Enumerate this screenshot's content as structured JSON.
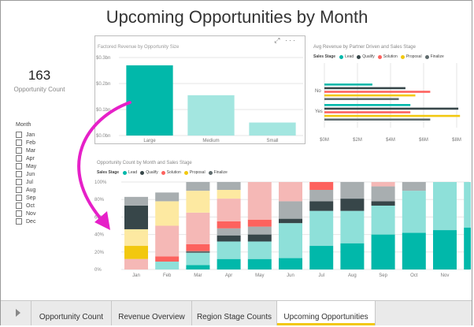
{
  "page": {
    "title": "Upcoming Opportunities by Month"
  },
  "kpi": {
    "value": "163",
    "label": "Opportunity Count"
  },
  "slicer": {
    "title": "Month",
    "items": [
      "Jan",
      "Feb",
      "Mar",
      "Apr",
      "May",
      "Jun",
      "Jul",
      "Aug",
      "Sep",
      "Oct",
      "Nov",
      "Dec"
    ]
  },
  "colors": {
    "Lead": "#01b8aa",
    "Qualify": "#374649",
    "Solution": "#fd625e",
    "Proposal": "#f2c80f",
    "Finalize": "#5f6b6d",
    "highlight_arrow": "#e620c8"
  },
  "legend": {
    "title": "Sales Stage",
    "items": [
      "Lead",
      "Qualify",
      "Solution",
      "Proposal",
      "Finalize"
    ]
  },
  "card": {
    "icons": "⤢ ···"
  },
  "chart_data": [
    {
      "type": "bar",
      "title": "Factored Revenue by Opportunity Size",
      "categories": [
        "Large",
        "Medium",
        "Small"
      ],
      "values": [
        0.27,
        0.155,
        0.05
      ],
      "yticks": [
        "$0.0bn",
        "$0.1bn",
        "$0.2bn",
        "$0.3bn"
      ],
      "ylim": [
        0,
        0.3
      ],
      "color": "#01b8aa"
    },
    {
      "type": "bar",
      "orientation": "horizontal",
      "title": "Avg Revenue by Partner Driven and Sales Stage",
      "categories": [
        "No",
        "Yes"
      ],
      "xticks": [
        "$0M",
        "$2M",
        "$4M",
        "$6M",
        "$8M"
      ],
      "xlim": [
        0,
        8
      ],
      "series": [
        {
          "name": "Lead",
          "values": [
            2.9,
            5.2
          ]
        },
        {
          "name": "Qualify",
          "values": [
            4.9,
            8.1
          ]
        },
        {
          "name": "Solution",
          "values": [
            6.4,
            5.2
          ]
        },
        {
          "name": "Proposal",
          "values": [
            5.5,
            8.2
          ]
        },
        {
          "name": "Finalize",
          "values": [
            4.5,
            6.4
          ]
        }
      ],
      "legend": "top-left"
    },
    {
      "type": "bar",
      "stacked": "100%",
      "title": "Opportunity Count by Month and Sales Stage",
      "categories": [
        "Jan",
        "Feb",
        "Mar",
        "Apr",
        "May",
        "Jun",
        "Jul",
        "Aug",
        "Sep",
        "Oct",
        "Nov",
        "Dec"
      ],
      "yticks": [
        "0%",
        "20%",
        "40%",
        "60%",
        "80%",
        "100%"
      ],
      "series": [
        {
          "name": "Lead",
          "values": [
            0,
            0,
            0,
            0,
            10,
            13,
            27,
            30,
            40,
            42,
            45,
            48
          ]
        },
        {
          "name": "Qualify",
          "values": [
            0,
            0,
            0,
            0,
            0,
            0,
            0,
            0,
            0,
            0,
            0,
            0
          ]
        },
        {
          "name": "Solution",
          "values": [
            0,
            0,
            0,
            0,
            0,
            0,
            0,
            0,
            0,
            0,
            0,
            0
          ]
        },
        {
          "name": "Proposal",
          "values": [
            0,
            0,
            0,
            0,
            0,
            0,
            0,
            0,
            0,
            0,
            0,
            0
          ]
        },
        {
          "name": "Finalize",
          "values": [
            0,
            0,
            0,
            0,
            0,
            0,
            0,
            0,
            0,
            0,
            0,
            0
          ]
        }
      ],
      "segments": [
        [
          [
            "#01b8aa",
            0
          ],
          [
            "#f5b8b6",
            12
          ],
          [
            "#f2c80f",
            15
          ],
          [
            "#fde9a1",
            19
          ],
          [
            "#374649",
            27
          ],
          [
            "#a8aeb0",
            10
          ],
          [
            "#ffffff",
            0
          ]
        ],
        [
          [
            "#01b8aa",
            0
          ],
          [
            "#8ee0d9",
            9
          ],
          [
            "#fd625e",
            6
          ],
          [
            "#f5b8b6",
            35
          ],
          [
            "#fde9a1",
            28
          ],
          [
            "#a8aeb0",
            10
          ]
        ],
        [
          [
            "#01b8aa",
            5
          ],
          [
            "#8ee0d9",
            14
          ],
          [
            "#5f6b6d",
            2
          ],
          [
            "#fd625e",
            8
          ],
          [
            "#f5b8b6",
            36
          ],
          [
            "#fde9a1",
            25
          ],
          [
            "#a8aeb0",
            10
          ]
        ],
        [
          [
            "#01b8aa",
            12
          ],
          [
            "#8ee0d9",
            20
          ],
          [
            "#374649",
            7
          ],
          [
            "#a8aeb0",
            8
          ],
          [
            "#fd625e",
            8
          ],
          [
            "#f5b8b6",
            26
          ],
          [
            "#fde9a1",
            10
          ],
          [
            "#a8aeb0",
            9
          ]
        ],
        [
          [
            "#01b8aa",
            12
          ],
          [
            "#8ee0d9",
            20
          ],
          [
            "#374649",
            8
          ],
          [
            "#a8aeb0",
            9
          ],
          [
            "#fd625e",
            8
          ],
          [
            "#f5b8b6",
            43
          ]
        ],
        [
          [
            "#01b8aa",
            13
          ],
          [
            "#8ee0d9",
            40
          ],
          [
            "#374649",
            5
          ],
          [
            "#a8aeb0",
            20
          ],
          [
            "#f5b8b6",
            22
          ]
        ],
        [
          [
            "#01b8aa",
            27
          ],
          [
            "#8ee0d9",
            40
          ],
          [
            "#374649",
            11
          ],
          [
            "#a8aeb0",
            13
          ],
          [
            "#fd625e",
            9
          ]
        ],
        [
          [
            "#01b8aa",
            30
          ],
          [
            "#8ee0d9",
            37
          ],
          [
            "#374649",
            14
          ],
          [
            "#a8aeb0",
            19
          ]
        ],
        [
          [
            "#01b8aa",
            40
          ],
          [
            "#8ee0d9",
            33
          ],
          [
            "#374649",
            5
          ],
          [
            "#a8aeb0",
            17
          ],
          [
            "#f5b8b6",
            5
          ]
        ],
        [
          [
            "#01b8aa",
            42
          ],
          [
            "#8ee0d9",
            48
          ],
          [
            "#a8aeb0",
            10
          ]
        ],
        [
          [
            "#01b8aa",
            45
          ],
          [
            "#8ee0d9",
            55
          ]
        ],
        [
          [
            "#01b8aa",
            48
          ],
          [
            "#8ee0d9",
            52
          ]
        ]
      ]
    }
  ],
  "tabs": [
    {
      "label": "Opportunity Count"
    },
    {
      "label": "Revenue Overview"
    },
    {
      "label": "Region Stage Counts"
    },
    {
      "label": "Upcoming Opportunities",
      "active": true
    }
  ]
}
